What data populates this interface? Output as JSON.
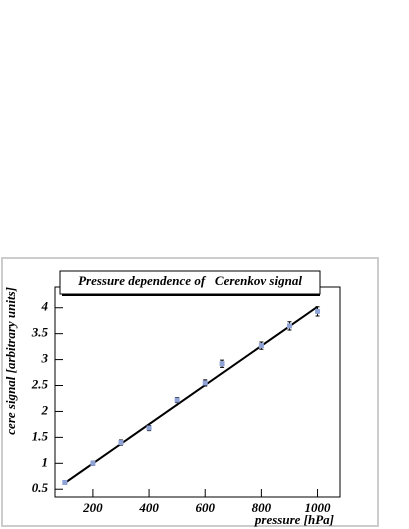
{
  "chart_data": {
    "type": "scatter",
    "title": "Pressure dependence of   Cerenkov signal",
    "x_label": "pressure [hPa]",
    "y_label": "cere signal [arbitrary units]",
    "x": [
      100,
      200,
      300,
      400,
      500,
      600,
      660,
      800,
      900,
      1000
    ],
    "values": [
      0.63,
      1.0,
      1.4,
      1.68,
      2.22,
      2.55,
      2.92,
      3.27,
      3.65,
      3.93
    ],
    "errors": [
      0.03,
      0.04,
      0.05,
      0.05,
      0.05,
      0.06,
      0.07,
      0.07,
      0.08,
      0.09
    ],
    "color": "#8fa3d6",
    "fit": {
      "x": [
        100,
        1000
      ],
      "values": [
        0.62,
        4.02
      ],
      "color": "#000000"
    },
    "xlim": [
      65,
      1080
    ],
    "ylim": [
      0.35,
      4.4
    ],
    "xticks": [
      200,
      400,
      600,
      800,
      1000
    ],
    "yticks": [
      0.5,
      1,
      1.5,
      2,
      2.5,
      3,
      3.5,
      4
    ]
  }
}
